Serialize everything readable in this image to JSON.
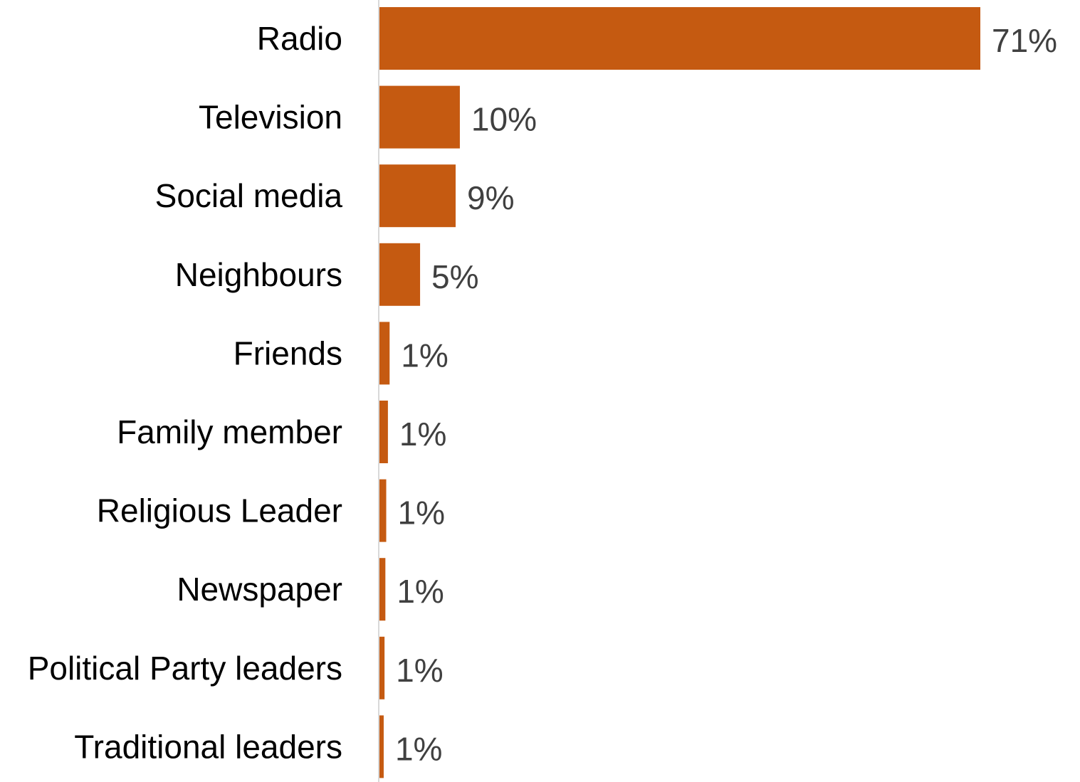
{
  "chart_data": {
    "type": "bar",
    "orientation": "horizontal",
    "categories": [
      "Radio",
      "Television",
      "Social media",
      "Neighbours",
      "Friends",
      "Family member",
      "Religious Leader",
      "Newspaper",
      "Political Party leaders",
      "Traditional leaders"
    ],
    "values": [
      71.0,
      9.5,
      9.0,
      4.8,
      1.2,
      1.0,
      0.8,
      0.7,
      0.6,
      0.5
    ],
    "data_labels": [
      "71%",
      "10%",
      "9%",
      "5%",
      "1%",
      "1%",
      "1%",
      "1%",
      "1%",
      "1%"
    ],
    "value_unit": "%",
    "xlim": [
      0,
      71
    ],
    "grid": false,
    "legend": "none",
    "bar_color": "#C55A11",
    "axis_color": "#D9D9D9",
    "label_color": "#000000",
    "value_label_color": "#404040"
  }
}
